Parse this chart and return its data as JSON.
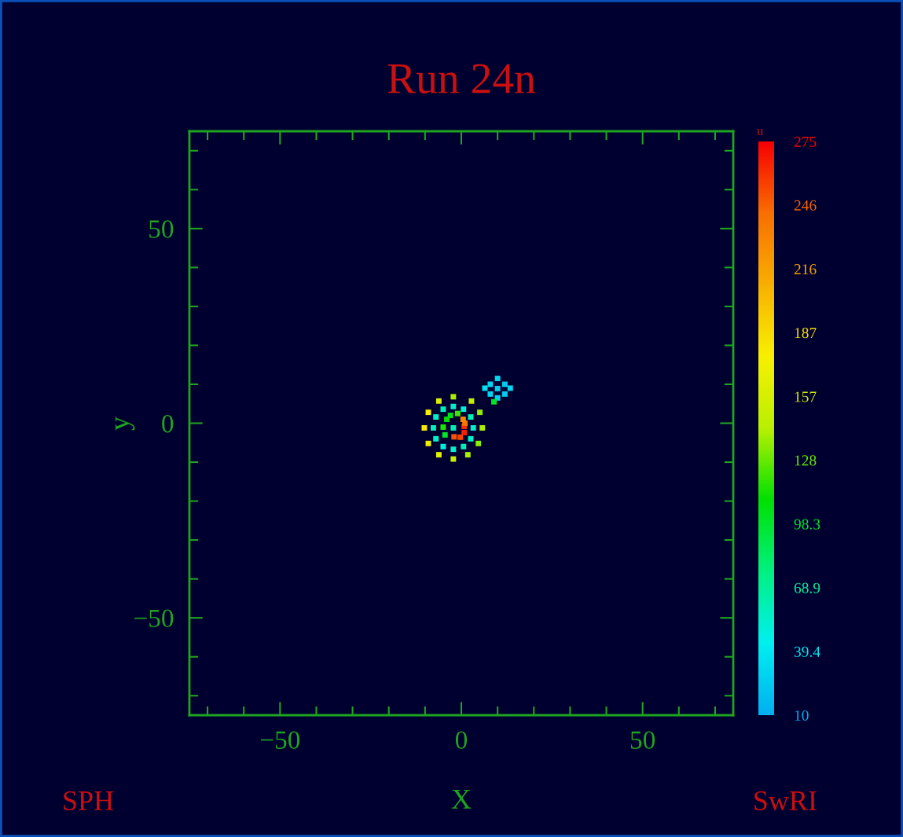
{
  "chart_data": {
    "type": "scatter",
    "title": "Run 24n",
    "xlabel": "X",
    "ylabel": "y",
    "clabel": "u",
    "annotations": [
      "SPH",
      "SwRI"
    ],
    "x": [
      0.8,
      0.8,
      -0.3,
      -2,
      1,
      0.5,
      -4,
      -5,
      -3,
      -1,
      -4.5,
      -2.2,
      3.3,
      2.6,
      0.6,
      -2.2,
      -5.0,
      -7.0,
      -7.7,
      -7.0,
      -5.0,
      -2.2,
      0.6,
      2.6,
      5.8,
      5.1,
      2.8,
      -2.2,
      -6.2,
      -9.1,
      -10.2,
      -9.1,
      -6.2,
      -2.2,
      1.8,
      4.7,
      10,
      8,
      12,
      8,
      12,
      10,
      10,
      6.5,
      13.5,
      9
    ],
    "series": [
      {
        "values": [
          -0.8,
          -2.4,
          -3.6,
          -3.5,
          0,
          1,
          1,
          -1,
          2,
          2.5,
          -3,
          -1.2,
          -1.2,
          1.6,
          3.6,
          4.3,
          3.6,
          1.6,
          -1.2,
          -4.0,
          -6.0,
          -6.7,
          -6.0,
          -4.0,
          -1.2,
          2.8,
          5.7,
          6.8,
          5.7,
          2.8,
          -1.2,
          -5.2,
          -8.1,
          -9.2,
          -8.1,
          -5.2,
          8.9,
          10,
          10,
          7.5,
          7.5,
          11.5,
          6.5,
          9,
          9,
          5.5
        ],
        "cvalues": [
          260,
          265,
          255,
          250,
          240,
          230,
          110,
          115,
          105,
          120,
          100,
          60,
          55,
          60,
          50,
          55,
          60,
          55,
          60,
          55,
          50,
          55,
          60,
          55,
          140,
          135,
          150,
          140,
          160,
          175,
          180,
          170,
          165,
          150,
          140,
          135,
          25,
          30,
          25,
          30,
          25,
          30,
          28,
          35,
          30,
          100
        ]
      }
    ],
    "marker": "square",
    "grid": false,
    "xlim": [
      -75,
      75
    ],
    "ylim": [
      -75,
      75
    ],
    "xticks": [
      {
        "value": -70,
        "label": null
      },
      {
        "value": -60,
        "label": null
      },
      -50,
      {
        "value": -40,
        "label": null
      },
      {
        "value": -30,
        "label": null
      },
      {
        "value": -20,
        "label": null
      },
      {
        "value": -10,
        "label": null
      },
      0,
      {
        "value": 10,
        "label": null
      },
      {
        "value": 20,
        "label": null
      },
      {
        "value": 30,
        "label": null
      },
      {
        "value": 40,
        "label": null
      },
      50,
      {
        "value": 60,
        "label": null
      },
      {
        "value": 70,
        "label": null
      }
    ],
    "yticks": [
      {
        "value": -70,
        "label": null
      },
      {
        "value": -60,
        "label": null
      },
      -50,
      {
        "value": -40,
        "label": null
      },
      {
        "value": -30,
        "label": null
      },
      {
        "value": -20,
        "label": null
      },
      {
        "value": -10,
        "label": null
      },
      0,
      {
        "value": 10,
        "label": null
      },
      {
        "value": 20,
        "label": null
      },
      {
        "value": 30,
        "label": null
      },
      {
        "value": 40,
        "label": null
      },
      50,
      {
        "value": 60,
        "label": null
      },
      {
        "value": 70,
        "label": null
      }
    ],
    "clim": [
      10,
      275
    ],
    "cticks": [
      10,
      {
        "value": 39.44,
        "label": "39.4"
      },
      {
        "value": 68.89,
        "label": "68.9"
      },
      {
        "value": 98.33,
        "label": "98.3"
      },
      {
        "value": 127.8,
        "label": "128"
      },
      {
        "value": 157.2,
        "label": "157"
      },
      {
        "value": 186.7,
        "label": "187"
      },
      {
        "value": 216.1,
        "label": "216"
      },
      {
        "value": 245.6,
        "label": "246"
      },
      275
    ]
  }
}
